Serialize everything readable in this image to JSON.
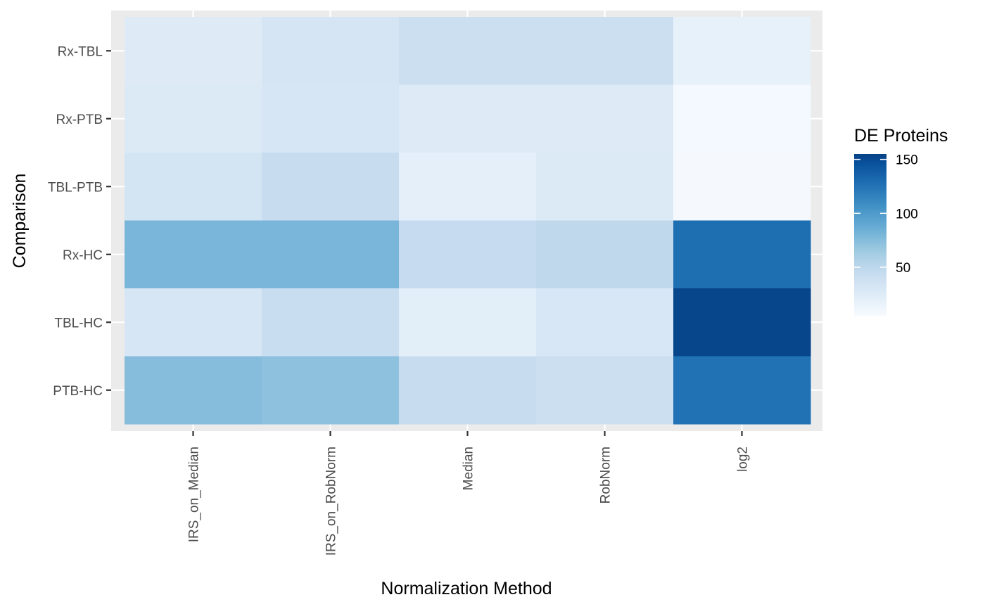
{
  "chart_data": {
    "type": "heatmap",
    "title": "",
    "xlabel": "Normalization Method",
    "ylabel": "Comparison",
    "x_categories": [
      "IRS_on_Median",
      "IRS_on_RobNorm",
      "Median",
      "RobNorm",
      "log2"
    ],
    "y_categories": [
      "Rx-TBL",
      "Rx-PTB",
      "TBL-PTB",
      "Rx-HC",
      "TBL-HC",
      "PTB-HC"
    ],
    "values": [
      [
        25,
        33,
        40,
        40,
        18
      ],
      [
        27,
        32,
        25,
        25,
        8
      ],
      [
        34,
        44,
        20,
        27,
        7
      ],
      [
        80,
        80,
        45,
        49,
        128
      ],
      [
        32,
        43,
        22,
        30,
        153
      ],
      [
        75,
        72,
        44,
        40,
        126
      ]
    ],
    "color_scale": {
      "low": "#f7fbff",
      "high": "#08306b",
      "scheme": "Blues"
    },
    "legend": {
      "title": "DE Proteins",
      "ticks": [
        50,
        100,
        150
      ],
      "range": [
        5,
        155
      ],
      "position": "right"
    },
    "panel_background": "#ebebeb",
    "grid": true
  }
}
